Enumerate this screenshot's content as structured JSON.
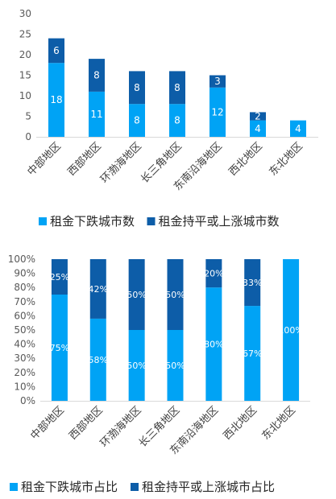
{
  "colors": {
    "light": "#00A3F5",
    "dark": "#0D5DA8"
  },
  "chart_data": [
    {
      "type": "bar",
      "stacked": true,
      "categories": [
        "中部地区",
        "西部地区",
        "环渤海地区",
        "长三角地区",
        "东南沿海地区",
        "西北地区",
        "东北地区"
      ],
      "series": [
        {
          "name": "租金下跌城市数",
          "values": [
            18,
            11,
            8,
            8,
            12,
            4,
            4
          ]
        },
        {
          "name": "租金持平或上涨城市数",
          "values": [
            6,
            8,
            8,
            8,
            3,
            2,
            0
          ]
        }
      ],
      "yticks": [
        0,
        5,
        10,
        15,
        20,
        25,
        30
      ],
      "ylim": [
        0,
        30
      ],
      "legend": "bottom",
      "grid": false
    },
    {
      "type": "bar",
      "stacked": true,
      "percent": true,
      "categories": [
        "中部地区",
        "西部地区",
        "环渤海地区",
        "长三角地区",
        "东南沿海地区",
        "西北地区",
        "东北地区"
      ],
      "series": [
        {
          "name": "租金下跌城市占比",
          "values": [
            75,
            58,
            50,
            50,
            80,
            67,
            100
          ],
          "labels": [
            "75%",
            "58%",
            "50%",
            "50%",
            "80%",
            "67%",
            "100%"
          ]
        },
        {
          "name": "租金持平或上涨城市占比",
          "values": [
            25,
            42,
            50,
            50,
            20,
            33,
            0
          ],
          "labels": [
            "25%",
            "42%",
            "50%",
            "50%",
            "20%",
            "33%",
            ""
          ]
        }
      ],
      "yticks": [
        "0%",
        "10%",
        "20%",
        "30%",
        "40%",
        "50%",
        "60%",
        "70%",
        "80%",
        "90%",
        "100%"
      ],
      "ylim": [
        0,
        100
      ],
      "legend": "bottom",
      "grid": false
    }
  ]
}
